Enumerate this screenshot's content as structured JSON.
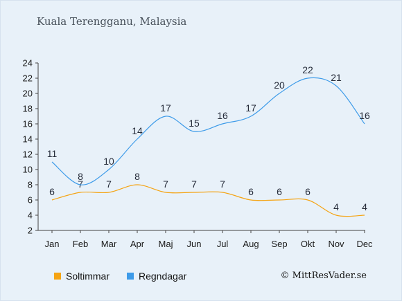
{
  "title": "Kuala Terengganu, Malaysia",
  "credit": "© MittResVader.se",
  "colors": {
    "background": "#e8f1f9",
    "axis": "#444444",
    "soltimmar": "#f5a414",
    "regndagar": "#3d9be9"
  },
  "chart_data": {
    "type": "line",
    "title": "Kuala Terengganu, Malaysia",
    "categories": [
      "Jan",
      "Feb",
      "Mar",
      "Apr",
      "Maj",
      "Jun",
      "Jul",
      "Aug",
      "Sep",
      "Okt",
      "Nov",
      "Dec"
    ],
    "series": [
      {
        "name": "Soltimmar",
        "color": "#f5a414",
        "values": [
          6,
          7,
          7,
          8,
          7,
          7,
          7,
          6,
          6,
          6,
          4,
          4
        ]
      },
      {
        "name": "Regndagar",
        "color": "#3d9be9",
        "values": [
          11,
          8,
          10,
          14,
          17,
          15,
          16,
          17,
          20,
          22,
          21,
          16
        ]
      }
    ],
    "ylim": [
      2,
      24
    ],
    "yticks": [
      2,
      4,
      6,
      8,
      10,
      12,
      14,
      16,
      18,
      20,
      22,
      24
    ],
    "grid": false,
    "smooth": true,
    "legend_position": "bottom-left",
    "data_labels": true
  }
}
